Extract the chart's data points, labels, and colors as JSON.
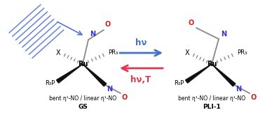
{
  "background_color": "#ffffff",
  "arrow_forward_color": "#4472c4",
  "arrow_back_color": "#e8334a",
  "hv_label": "hν",
  "hvT_label": "hν,T",
  "label_gs": "GS",
  "label_pli": "PLI-1",
  "label_bottom": "bent η¹-NO / linear η¹-NO",
  "n_color": "#3333cc",
  "o_color": "#cc2222",
  "bond_gray": "#888888",
  "laser_color": "#5577cc"
}
